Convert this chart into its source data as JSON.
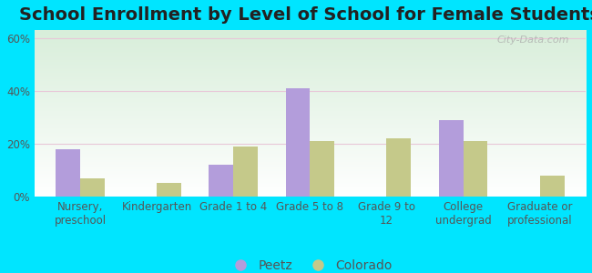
{
  "title": "School Enrollment by Level of School for Female Students",
  "categories": [
    "Nursery,\npreschool",
    "Kindergarten",
    "Grade 1 to 4",
    "Grade 5 to 8",
    "Grade 9 to\n12",
    "College\nundergrad",
    "Graduate or\nprofessional"
  ],
  "peetz_values": [
    18,
    0,
    12,
    41,
    0,
    29,
    0
  ],
  "colorado_values": [
    7,
    5,
    19,
    21,
    22,
    21,
    8
  ],
  "peetz_color": "#b39ddb",
  "colorado_color": "#c5c98a",
  "background_outer": "#00e5ff",
  "background_top": "#d8eeda",
  "background_bottom": "#ffffff",
  "grid_color": "#e8c8d8",
  "yticks": [
    0,
    20,
    40,
    60
  ],
  "ylim": [
    0,
    63
  ],
  "bar_width": 0.32,
  "legend_labels": [
    "Peetz",
    "Colorado"
  ],
  "title_fontsize": 14,
  "axis_fontsize": 8.5,
  "legend_fontsize": 10,
  "watermark_text": "City-Data.com",
  "tick_color": "#555555"
}
